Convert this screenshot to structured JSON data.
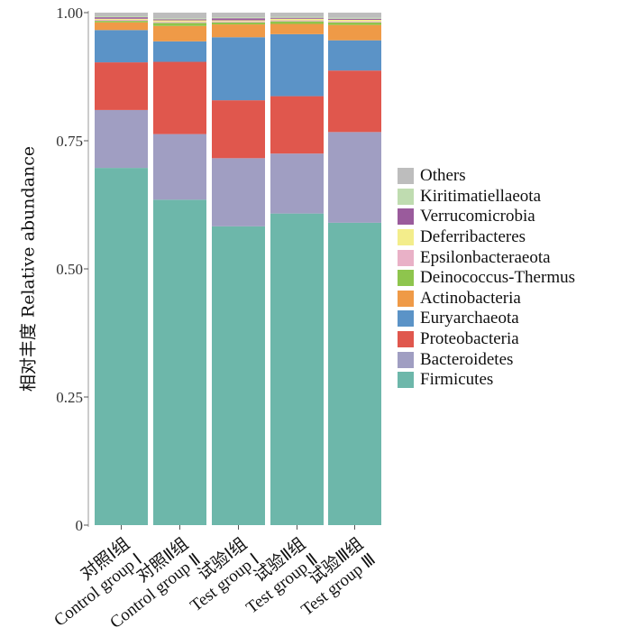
{
  "chart_data": {
    "type": "bar",
    "stacked": true,
    "ylabel": "相对丰度 Relative abundance",
    "ylim": [
      0,
      1.0
    ],
    "yticks": [
      "0",
      "0.25",
      "0.50",
      "0.75",
      "1.00"
    ],
    "grid": false,
    "legend_position": "right",
    "categories": [
      [
        "对照Ⅰ组",
        "Control group Ⅰ"
      ],
      [
        "对照Ⅱ组",
        "Control group Ⅱ"
      ],
      [
        "试验Ⅰ组",
        "Test group Ⅰ"
      ],
      [
        "试验Ⅱ组",
        "Test group Ⅱ"
      ],
      [
        "试验Ⅲ组",
        "Test group Ⅲ"
      ]
    ],
    "series": [
      {
        "name": "Firmicutes",
        "color": "#6db7aa",
        "values": [
          0.697,
          0.635,
          0.583,
          0.608,
          0.59
        ]
      },
      {
        "name": "Bacteroidetes",
        "color": "#a09ec2",
        "values": [
          0.113,
          0.128,
          0.133,
          0.117,
          0.177
        ]
      },
      {
        "name": "Proteobacteria",
        "color": "#e0574d",
        "values": [
          0.093,
          0.141,
          0.113,
          0.112,
          0.12
        ]
      },
      {
        "name": "Euryarchaeota",
        "color": "#5b93c7",
        "values": [
          0.063,
          0.04,
          0.123,
          0.121,
          0.059
        ]
      },
      {
        "name": "Actinobacteria",
        "color": "#ef9a47",
        "values": [
          0.015,
          0.03,
          0.025,
          0.02,
          0.03
        ]
      },
      {
        "name": "Deinococcus-Thermus",
        "color": "#8ec54d",
        "values": [
          0.003,
          0.006,
          0.004,
          0.005,
          0.005
        ]
      },
      {
        "name": "Epsilonbacteraeota",
        "color": "#e9b1c7",
        "values": [
          0.002,
          0.002,
          0.002,
          0.002,
          0.002
        ]
      },
      {
        "name": "Deferribacteres",
        "color": "#f3ed8b",
        "values": [
          0.002,
          0.003,
          0.002,
          0.003,
          0.003
        ]
      },
      {
        "name": "Verrucomicrobia",
        "color": "#9a5b9c",
        "values": [
          0.003,
          0.002,
          0.004,
          0.002,
          0.002
        ]
      },
      {
        "name": "Kiritimatiellaeota",
        "color": "#bfdcb0",
        "values": [
          0.002,
          0.002,
          0.002,
          0.002,
          0.002
        ]
      },
      {
        "name": "Others",
        "color": "#bdbdbd",
        "values": [
          0.007,
          0.011,
          0.009,
          0.008,
          0.01
        ]
      }
    ]
  }
}
